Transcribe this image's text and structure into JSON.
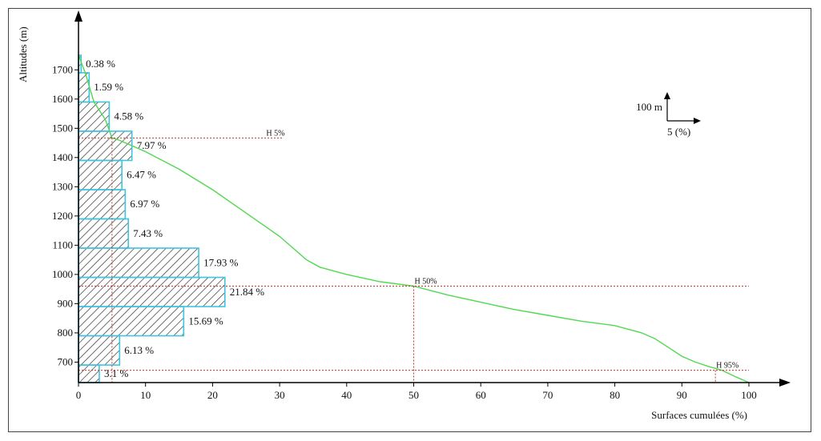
{
  "chart_data": {
    "type": "bar",
    "title": "",
    "xlabel": "Surfaces cumulées (%)",
    "ylabel": "Altitudes (m)",
    "xlim": [
      0,
      100
    ],
    "ylim": [
      630,
      1750
    ],
    "x_ticks": [
      "0",
      "10",
      "20",
      "30",
      "40",
      "50",
      "60",
      "70",
      "80",
      "90",
      "100"
    ],
    "y_ticks": [
      "700",
      "800",
      "900",
      "1000",
      "1100",
      "1200",
      "1300",
      "1400",
      "1500",
      "1600",
      "1700"
    ],
    "bands": [
      {
        "from": 630,
        "to": 690,
        "percent": 3.1,
        "label": "3.1 %"
      },
      {
        "from": 690,
        "to": 790,
        "percent": 6.13,
        "label": "6.13 %"
      },
      {
        "from": 790,
        "to": 890,
        "percent": 15.69,
        "label": "15.69 %"
      },
      {
        "from": 890,
        "to": 990,
        "percent": 21.84,
        "label": "21.84 %"
      },
      {
        "from": 990,
        "to": 1090,
        "percent": 17.93,
        "label": "17.93 %"
      },
      {
        "from": 1090,
        "to": 1190,
        "percent": 7.43,
        "label": "7.43 %"
      },
      {
        "from": 1190,
        "to": 1290,
        "percent": 6.97,
        "label": "6.97 %"
      },
      {
        "from": 1290,
        "to": 1390,
        "percent": 6.47,
        "label": "6.47 %"
      },
      {
        "from": 1390,
        "to": 1490,
        "percent": 7.97,
        "label": "7.97 %"
      },
      {
        "from": 1490,
        "to": 1590,
        "percent": 4.58,
        "label": "4.58 %"
      },
      {
        "from": 1590,
        "to": 1690,
        "percent": 1.59,
        "label": "1.59 %"
      },
      {
        "from": 1690,
        "to": 1750,
        "percent": 0.38,
        "label": "0.38 %"
      }
    ],
    "hypsometric_curve": {
      "x": [
        0,
        1,
        2.3,
        4,
        5,
        6,
        8,
        10,
        15,
        20,
        25,
        30,
        34,
        36,
        40,
        45,
        50,
        55,
        60,
        65,
        70,
        75,
        80,
        84,
        86,
        88,
        90,
        92,
        94,
        96,
        98,
        100
      ],
      "y": [
        1750,
        1690,
        1590,
        1530,
        1467,
        1460,
        1440,
        1420,
        1360,
        1290,
        1210,
        1130,
        1050,
        1025,
        1000,
        975,
        960,
        930,
        905,
        880,
        860,
        840,
        825,
        800,
        780,
        750,
        720,
        700,
        685,
        672,
        650,
        630
      ]
    },
    "reference_lines": [
      {
        "name": "H 5%",
        "x": 5,
        "y": 1467
      },
      {
        "name": "H 50%",
        "x": 50,
        "y": 960
      },
      {
        "name": "H 95%",
        "x": 95,
        "y": 672
      }
    ],
    "scale_legend": {
      "vertical": "100 m",
      "horizontal": "5 (%)"
    },
    "colors": {
      "bar_edge": "#3fc4e0",
      "hatch": "#333333",
      "curve": "#52d852",
      "reference": "#c0392b",
      "axis": "#000000"
    }
  }
}
